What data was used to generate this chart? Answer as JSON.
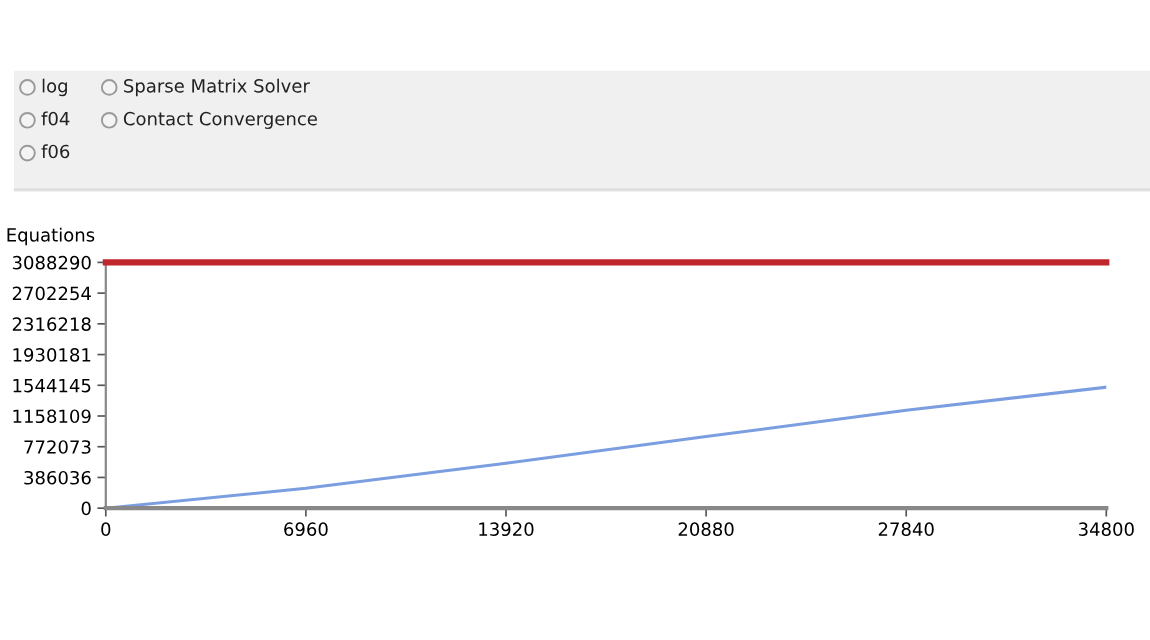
{
  "chart_data": [
    {
      "type": "other",
      "annotations": [
        "log",
        "f04",
        "f06",
        "Sparse Matrix Solver",
        "Contact Convergence"
      ]
    },
    {
      "type": "line",
      "ylabel": "Equations",
      "x": [
        0,
        6960,
        13920,
        20880,
        27840,
        34800
      ],
      "series": [
        {
          "color": "#7b9ee0",
          "values": [
            0,
            250000,
            565000,
            900000,
            1230000,
            1520000
          ]
        }
      ],
      "ref_lines": [
        {
          "axis": "y",
          "value": 3088290,
          "color": "#c0272d",
          "line_style": "solid"
        }
      ],
      "xlim": [
        0,
        34800
      ],
      "xticks": [
        0,
        6960,
        13920,
        20880,
        27840,
        34800
      ],
      "ylim": [
        0,
        3088290
      ],
      "yticks": [
        0,
        386036,
        772073,
        1158109,
        1544145,
        1930181,
        2316218,
        2702254,
        3088290
      ],
      "grid": false,
      "legend": false,
      "marker": "none",
      "line_style": "solid"
    }
  ]
}
